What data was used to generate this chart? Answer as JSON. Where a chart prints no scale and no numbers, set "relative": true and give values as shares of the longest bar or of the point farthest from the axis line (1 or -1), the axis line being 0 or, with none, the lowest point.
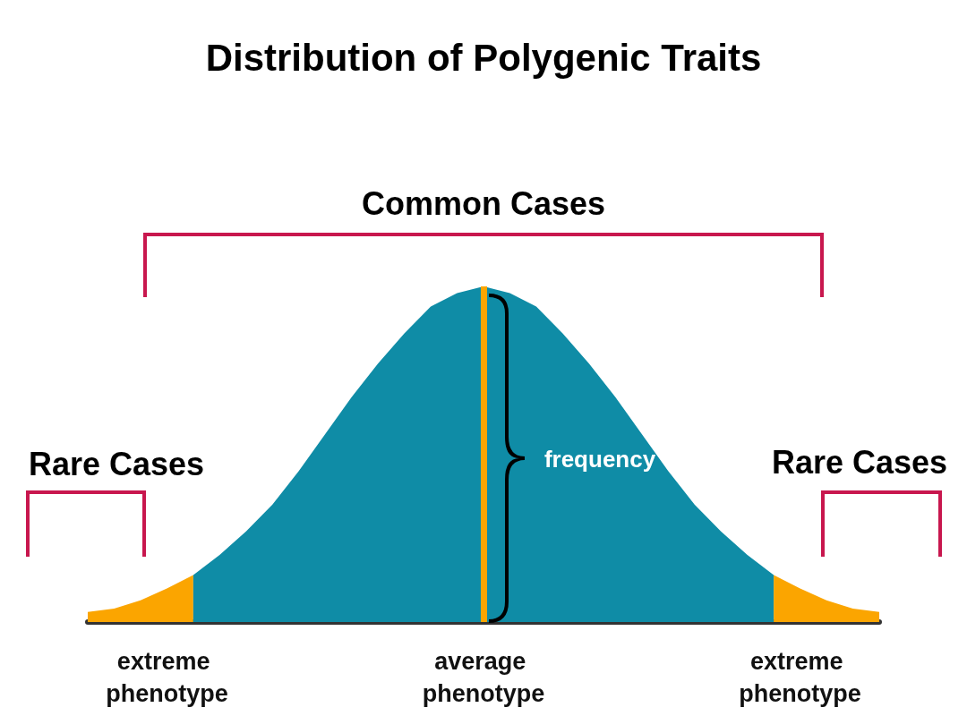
{
  "chart_data": {
    "type": "area",
    "title": "Distribution of Polygenic Traits",
    "relative": true,
    "grid": false,
    "marker": "none",
    "categories": [
      null,
      null,
      null,
      "extreme phenotype",
      null,
      null,
      null,
      null,
      null,
      null,
      null,
      null,
      null,
      null,
      null,
      "average phenotype",
      null,
      null,
      null,
      null,
      null,
      null,
      null,
      null,
      null,
      null,
      null,
      "extreme phenotype",
      null,
      null,
      null
    ],
    "series": [
      {
        "color": "#fba500",
        "values": [
          0.03,
          0.04,
          0.065,
          0.1,
          0.14,
          null,
          null,
          null,
          null,
          null,
          null,
          null,
          null,
          null,
          null,
          null,
          null,
          null,
          null,
          null,
          null,
          null,
          null,
          null,
          null,
          null,
          null,
          null,
          null,
          null,
          null
        ]
      },
      {
        "color": "#0f8ca6",
        "values": [
          null,
          null,
          null,
          null,
          0.14,
          0.2,
          0.27,
          0.35,
          0.45,
          0.56,
          0.67,
          0.77,
          0.86,
          0.94,
          0.98,
          1.0,
          0.98,
          0.94,
          0.86,
          0.77,
          0.67,
          0.56,
          0.45,
          0.35,
          0.27,
          0.2,
          0.14,
          null,
          null,
          null,
          null
        ]
      },
      {
        "color": "#fba500",
        "values": [
          null,
          null,
          null,
          null,
          null,
          null,
          null,
          null,
          null,
          null,
          null,
          null,
          null,
          null,
          null,
          null,
          null,
          null,
          null,
          null,
          null,
          null,
          null,
          null,
          null,
          null,
          0.14,
          0.1,
          0.065,
          0.04,
          0.03
        ]
      }
    ],
    "ref_lines": [
      {
        "axis": "x",
        "value": "average phenotype",
        "color": "#fba500"
      }
    ],
    "annotations": [
      "Common Cases",
      "Rare Cases",
      "Rare Cases",
      "frequency"
    ]
  }
}
